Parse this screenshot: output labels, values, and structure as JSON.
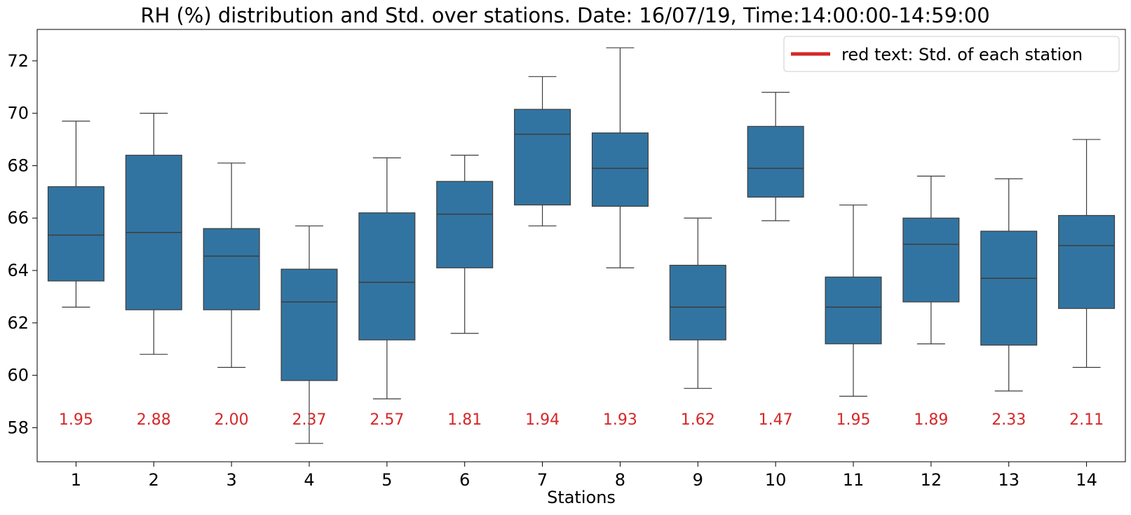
{
  "chart_data": {
    "type": "box",
    "title": "RH (%) distribution and Std. over stations. Date: 16/07/19, Time:14:00:00-14:59:00",
    "xlabel": "Stations",
    "ylabel": "",
    "categories": [
      "1",
      "2",
      "3",
      "4",
      "5",
      "6",
      "7",
      "8",
      "9",
      "10",
      "11",
      "12",
      "13",
      "14"
    ],
    "ylim": [
      56.7,
      73.2
    ],
    "yticks": [
      58,
      60,
      62,
      64,
      66,
      68,
      70,
      72
    ],
    "ytick_labels": [
      "58",
      "60",
      "62",
      "64",
      "66",
      "68",
      "70",
      "72"
    ],
    "box_color": "#3274a1",
    "std_color": "#d62728",
    "legend": {
      "label": "red text: Std. of each station",
      "color": "#d62728",
      "placement": "top-right"
    },
    "boxes": [
      {
        "whisker_low": 62.6,
        "q1": 63.6,
        "median": 65.35,
        "q3": 67.2,
        "whisker_high": 69.7
      },
      {
        "whisker_low": 60.8,
        "q1": 62.5,
        "median": 65.45,
        "q3": 68.4,
        "whisker_high": 70.0
      },
      {
        "whisker_low": 60.3,
        "q1": 62.5,
        "median": 64.55,
        "q3": 65.6,
        "whisker_high": 68.1
      },
      {
        "whisker_low": 57.4,
        "q1": 59.8,
        "median": 62.8,
        "q3": 64.05,
        "whisker_high": 65.7
      },
      {
        "whisker_low": 59.1,
        "q1": 61.35,
        "median": 63.55,
        "q3": 66.2,
        "whisker_high": 68.3
      },
      {
        "whisker_low": 61.6,
        "q1": 64.1,
        "median": 66.15,
        "q3": 67.4,
        "whisker_high": 68.4
      },
      {
        "whisker_low": 65.7,
        "q1": 66.5,
        "median": 69.2,
        "q3": 70.15,
        "whisker_high": 71.4
      },
      {
        "whisker_low": 64.1,
        "q1": 66.45,
        "median": 67.9,
        "q3": 69.25,
        "whisker_high": 72.5
      },
      {
        "whisker_low": 59.5,
        "q1": 61.35,
        "median": 62.6,
        "q3": 64.2,
        "whisker_high": 66.0
      },
      {
        "whisker_low": 65.9,
        "q1": 66.8,
        "median": 67.9,
        "q3": 69.5,
        "whisker_high": 70.8
      },
      {
        "whisker_low": 59.2,
        "q1": 61.2,
        "median": 62.6,
        "q3": 63.75,
        "whisker_high": 66.5
      },
      {
        "whisker_low": 61.2,
        "q1": 62.8,
        "median": 65.0,
        "q3": 66.0,
        "whisker_high": 67.6
      },
      {
        "whisker_low": 59.4,
        "q1": 61.15,
        "median": 63.7,
        "q3": 65.5,
        "whisker_high": 67.5
      },
      {
        "whisker_low": 60.3,
        "q1": 62.55,
        "median": 64.95,
        "q3": 66.1,
        "whisker_high": 69.0
      }
    ],
    "std_labels": [
      "1.95",
      "2.88",
      "2.00",
      "2.37",
      "2.57",
      "1.81",
      "1.94",
      "1.93",
      "1.62",
      "1.47",
      "1.95",
      "1.89",
      "2.33",
      "2.11"
    ],
    "std_label_y": 58.3
  }
}
